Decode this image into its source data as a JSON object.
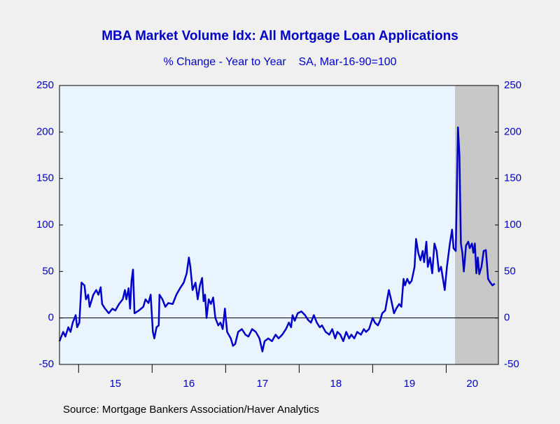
{
  "chart_data": {
    "type": "line",
    "title": "MBA Market Volume Idx: All Mortgage Loan Applications",
    "subtitle": "% Change - Year to Year    SA, Mar-16-90=100",
    "source": "Source:  Mortgage Bankers Association/Haver Analytics",
    "xlim": [
      2014.74,
      2020.71
    ],
    "xticks": [
      2015,
      2016,
      2017,
      2018,
      2019,
      2020
    ],
    "xlabels": [
      {
        "value": 2015.5,
        "label": "15"
      },
      {
        "value": 2016.5,
        "label": "16"
      },
      {
        "value": 2017.5,
        "label": "17"
      },
      {
        "value": 2018.5,
        "label": "18"
      },
      {
        "value": 2019.5,
        "label": "19"
      },
      {
        "value": 2020.355,
        "label": "20"
      }
    ],
    "ylim": [
      -50,
      250
    ],
    "yticks": [
      -50,
      0,
      50,
      100,
      150,
      200,
      250
    ],
    "y2lim": [
      -50,
      250
    ],
    "y2ticks": [
      -50,
      0,
      50,
      100,
      150,
      200,
      250
    ],
    "zero_line": true,
    "shading": [
      {
        "start": 2020.12,
        "end": 2020.71
      }
    ],
    "x": [
      2014.74,
      2014.79,
      2014.82,
      2014.86,
      2014.89,
      2014.92,
      2014.96,
      2014.98,
      2015.01,
      2015.04,
      2015.08,
      2015.1,
      2015.13,
      2015.15,
      2015.2,
      2015.24,
      2015.27,
      2015.3,
      2015.32,
      2015.36,
      2015.41,
      2015.46,
      2015.5,
      2015.55,
      2015.6,
      2015.63,
      2015.65,
      2015.68,
      2015.7,
      2015.72,
      2015.74,
      2015.76,
      2015.82,
      2015.88,
      2015.91,
      2015.95,
      2015.98,
      2016.01,
      2016.03,
      2016.06,
      2016.09,
      2016.1,
      2016.14,
      2016.18,
      2016.22,
      2016.28,
      2016.33,
      2016.38,
      2016.43,
      2016.47,
      2016.5,
      2016.52,
      2016.55,
      2016.59,
      2016.62,
      2016.65,
      2016.68,
      2016.7,
      2016.72,
      2016.74,
      2016.77,
      2016.8,
      2016.83,
      2016.86,
      2016.9,
      2016.93,
      2016.96,
      2016.99,
      2017.02,
      2017.07,
      2017.1,
      2017.13,
      2017.17,
      2017.22,
      2017.27,
      2017.31,
      2017.36,
      2017.41,
      2017.46,
      2017.5,
      2017.53,
      2017.58,
      2017.63,
      2017.68,
      2017.72,
      2017.77,
      2017.82,
      2017.86,
      2017.89,
      2017.91,
      2017.94,
      2017.98,
      2018.03,
      2018.08,
      2018.12,
      2018.16,
      2018.2,
      2018.24,
      2018.28,
      2018.31,
      2018.36,
      2018.41,
      2018.45,
      2018.49,
      2018.52,
      2018.56,
      2018.6,
      2018.64,
      2018.68,
      2018.71,
      2018.75,
      2018.79,
      2018.84,
      2018.88,
      2018.91,
      2018.95,
      2019.0,
      2019.03,
      2019.07,
      2019.1,
      2019.13,
      2019.17,
      2019.22,
      2019.25,
      2019.29,
      2019.32,
      2019.36,
      2019.39,
      2019.42,
      2019.44,
      2019.47,
      2019.5,
      2019.53,
      2019.57,
      2019.59,
      2019.62,
      2019.65,
      2019.68,
      2019.7,
      2019.73,
      2019.75,
      2019.78,
      2019.81,
      2019.84,
      2019.87,
      2019.9,
      2019.93,
      2019.95,
      2019.98,
      2020.01,
      2020.05,
      2020.08,
      2020.1,
      2020.13,
      2020.16,
      2020.18,
      2020.2,
      2020.22,
      2020.24,
      2020.27,
      2020.3,
      2020.32,
      2020.35,
      2020.37,
      2020.39,
      2020.41,
      2020.43,
      2020.45,
      2020.48,
      2020.51,
      2020.54,
      2020.57,
      2020.6,
      2020.63,
      2020.66
    ],
    "series": [
      {
        "name": "All Mortgage Loan Applications",
        "color": "#0000c8",
        "values": [
          -25,
          -15,
          -20,
          -10,
          -15,
          -5,
          3,
          -10,
          -5,
          38,
          35,
          20,
          25,
          12,
          25,
          30,
          25,
          33,
          15,
          10,
          5,
          10,
          8,
          15,
          20,
          30,
          20,
          32,
          10,
          40,
          52,
          5,
          8,
          12,
          20,
          16,
          25,
          -15,
          -22,
          -10,
          -8,
          25,
          20,
          12,
          16,
          15,
          25,
          32,
          38,
          48,
          65,
          55,
          30,
          38,
          20,
          35,
          43,
          18,
          25,
          0,
          20,
          15,
          22,
          0,
          -8,
          -5,
          -12,
          10,
          -15,
          -22,
          -30,
          -28,
          -15,
          -12,
          -18,
          -20,
          -12,
          -15,
          -22,
          -36,
          -25,
          -22,
          -25,
          -18,
          -22,
          -18,
          -12,
          -5,
          -10,
          3,
          -3,
          5,
          7,
          3,
          -2,
          -5,
          3,
          -5,
          -10,
          -8,
          -15,
          -18,
          -12,
          -22,
          -15,
          -18,
          -25,
          -15,
          -22,
          -18,
          -22,
          -15,
          -18,
          -12,
          -15,
          -12,
          0,
          -5,
          -8,
          -3,
          5,
          8,
          30,
          20,
          5,
          10,
          15,
          12,
          42,
          35,
          42,
          37,
          40,
          55,
          85,
          70,
          62,
          72,
          60,
          82,
          55,
          65,
          48,
          80,
          72,
          50,
          55,
          45,
          30,
          55,
          80,
          95,
          75,
          72,
          205,
          175,
          80,
          70,
          50,
          78,
          82,
          75,
          80,
          70,
          80,
          48,
          65,
          47,
          55,
          72,
          73,
          42,
          38,
          35,
          37
        ]
      }
    ]
  }
}
